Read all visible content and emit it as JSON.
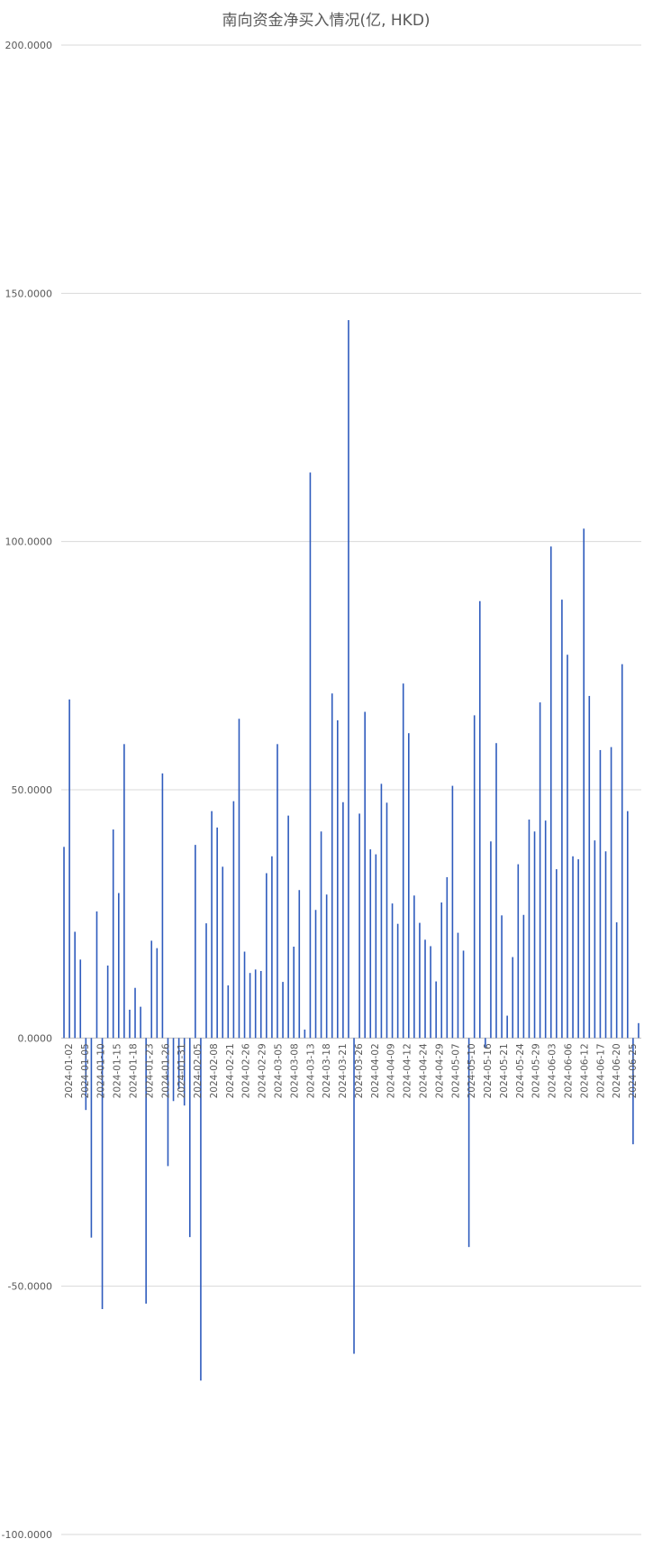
{
  "chart_data": {
    "type": "bar",
    "title": "南向资金净买入情况(亿,   HKD)",
    "ylim": [
      -100,
      200
    ],
    "yticks": [
      200,
      150,
      100,
      50,
      0,
      -50,
      -100
    ],
    "ytick_labels": [
      "200.0000",
      "150.0000",
      "100.0000",
      "50.0000",
      "0.0000",
      "-50.0000",
      "-100.0000"
    ],
    "grid": true,
    "legend": "none",
    "bar_color": "#2e5bbd",
    "x_tick_labels": [
      "2024-01-02",
      "2024-01-05",
      "2024-01-10",
      "2024-01-15",
      "2024-01-18",
      "2024-01-23",
      "2024-01-26",
      "2024-01-31",
      "2024-02-05",
      "2024-02-08",
      "2024-02-21",
      "2024-02-26",
      "2024-02-29",
      "2024-03-05",
      "2024-03-08",
      "2024-03-13",
      "2024-03-18",
      "2024-03-21",
      "2024-03-26",
      "2024-04-02",
      "2024-04-09",
      "2024-04-12",
      "2024-04-24",
      "2024-04-29",
      "2024-05-07",
      "2024-05-10",
      "2024-05-16",
      "2024-05-21",
      "2024-05-24",
      "2024-05-29",
      "2024-06-03",
      "2024-06-06",
      "2024-06-12",
      "2024-06-17",
      "2024-06-20",
      "2024-06-25"
    ],
    "values": [
      38.5,
      68.2,
      21.4,
      15.8,
      -14.5,
      -40.2,
      25.5,
      -54.6,
      14.6,
      42.0,
      29.2,
      59.2,
      5.7,
      10.1,
      6.3,
      -53.5,
      19.6,
      18.1,
      53.3,
      -25.8,
      -12.7,
      -10.3,
      -13.6,
      -40.1,
      38.9,
      -69.0,
      23.1,
      45.7,
      42.4,
      34.5,
      10.6,
      47.7,
      64.3,
      17.4,
      13.1,
      13.8,
      13.5,
      33.2,
      36.6,
      59.2,
      11.3,
      44.8,
      18.4,
      29.8,
      1.7,
      113.9,
      25.8,
      41.6,
      28.9,
      69.4,
      64.0,
      47.5,
      144.6,
      -63.6,
      45.2,
      65.7,
      38.0,
      37.0,
      51.2,
      47.4,
      27.1,
      23.0,
      71.4,
      61.4,
      28.7,
      23.2,
      19.8,
      18.5,
      11.4,
      27.3,
      32.4,
      50.8,
      21.2,
      17.6,
      -42.1,
      65.0,
      88.0,
      -2.0,
      39.6,
      59.4,
      24.7,
      4.5,
      16.3,
      35.0,
      24.8,
      44.0,
      41.6,
      67.6,
      43.8,
      99.0,
      34.0,
      88.3,
      77.2,
      36.6,
      36.0,
      102.6,
      68.9,
      39.8,
      58.0,
      37.6,
      58.6,
      23.3,
      75.3,
      45.7,
      -21.4,
      3.0
    ]
  }
}
